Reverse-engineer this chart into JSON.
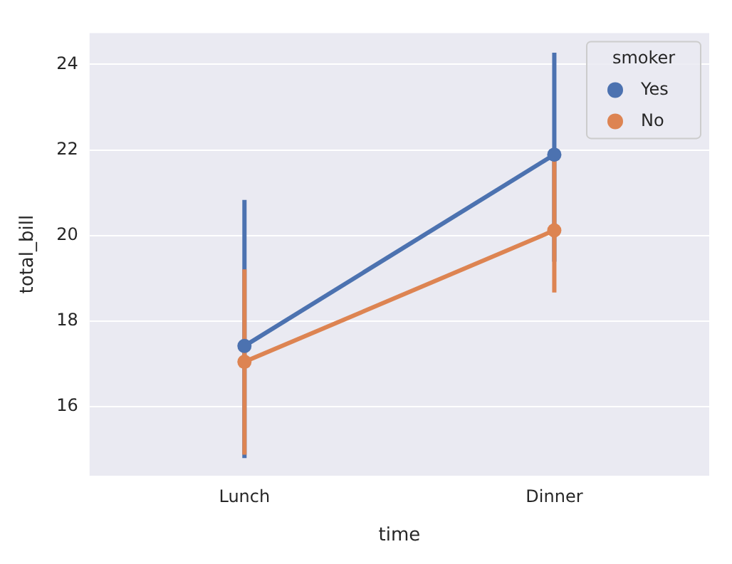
{
  "chart_data": {
    "type": "line",
    "xlabel": "time",
    "ylabel": "total_bill",
    "legend_title": "smoker",
    "categories": [
      "Lunch",
      "Dinner"
    ],
    "series": [
      {
        "name": "Yes",
        "color": "#4c72b0",
        "values": [
          17.42,
          21.89
        ],
        "errors": [
          [
            14.8,
            20.83
          ],
          [
            19.39,
            24.27
          ]
        ]
      },
      {
        "name": "No",
        "color": "#dd8452",
        "values": [
          17.05,
          20.12
        ],
        "errors": [
          [
            14.88,
            19.21
          ],
          [
            18.67,
            21.8
          ]
        ]
      }
    ],
    "ylim": [
      14.39,
      24.73
    ],
    "yticks": [
      16,
      18,
      20,
      22,
      24
    ],
    "grid": "y",
    "legend": "top right",
    "marker": "circle",
    "line_style": "solid"
  }
}
